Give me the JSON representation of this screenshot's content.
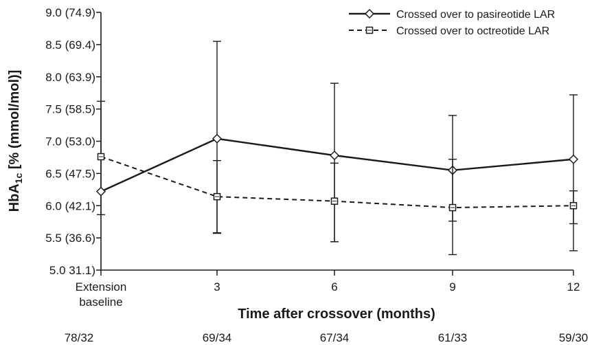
{
  "chart_data": {
    "type": "line",
    "xlabel": "Time after crossover (months)",
    "ylabel": {
      "main": "HbA",
      "subscript": "1c",
      "rest": " [% (mmol/mol)]"
    },
    "categories": [
      [
        "Extension",
        "baseline"
      ],
      [
        "3"
      ],
      [
        "6"
      ],
      [
        "9"
      ],
      [
        "12"
      ]
    ],
    "patient_counts": [
      "78/32",
      "69/34",
      "67/34",
      "61/33",
      "59/30"
    ],
    "yticks": [
      {
        "value": 5.0,
        "label": "5.0 31.1)"
      },
      {
        "value": 5.5,
        "label": "5.5 (36.6)"
      },
      {
        "value": 6.0,
        "label": "6.0 (42.1)"
      },
      {
        "value": 6.5,
        "label": "6.5 (47.5)"
      },
      {
        "value": 7.0,
        "label": "7.0 (53.0)"
      },
      {
        "value": 7.5,
        "label": "7.5 (58.5)"
      },
      {
        "value": 8.0,
        "label": "8.0 (63.9)"
      },
      {
        "value": 8.5,
        "label": "8.5 (69.4)"
      },
      {
        "value": 9.0,
        "label": "9.0 (74.9)"
      }
    ],
    "ylim": [
      5.0,
      9.0
    ],
    "legend_position": "top-right",
    "series": [
      {
        "name": "Crossed over to pasireotide LAR",
        "line_style": "solid",
        "marker": "diamond",
        "values": [
          6.22,
          7.04,
          6.78,
          6.55,
          6.72
        ],
        "error_low": [
          5.86,
          5.58,
          5.44,
          5.76,
          5.72
        ],
        "error_high": [
          7.62,
          8.55,
          7.9,
          7.4,
          7.72
        ]
      },
      {
        "name": "Crossed over to octreotide LAR",
        "line_style": "dashed",
        "marker": "square",
        "values": [
          6.76,
          6.14,
          6.07,
          5.97,
          6.0
        ],
        "error_low": [
          6.76,
          5.57,
          5.44,
          5.24,
          5.3
        ],
        "error_high": [
          6.76,
          6.7,
          6.66,
          6.72,
          6.23
        ]
      }
    ],
    "colors": {
      "line": "#1a1a1a",
      "background": "#ffffff"
    }
  }
}
